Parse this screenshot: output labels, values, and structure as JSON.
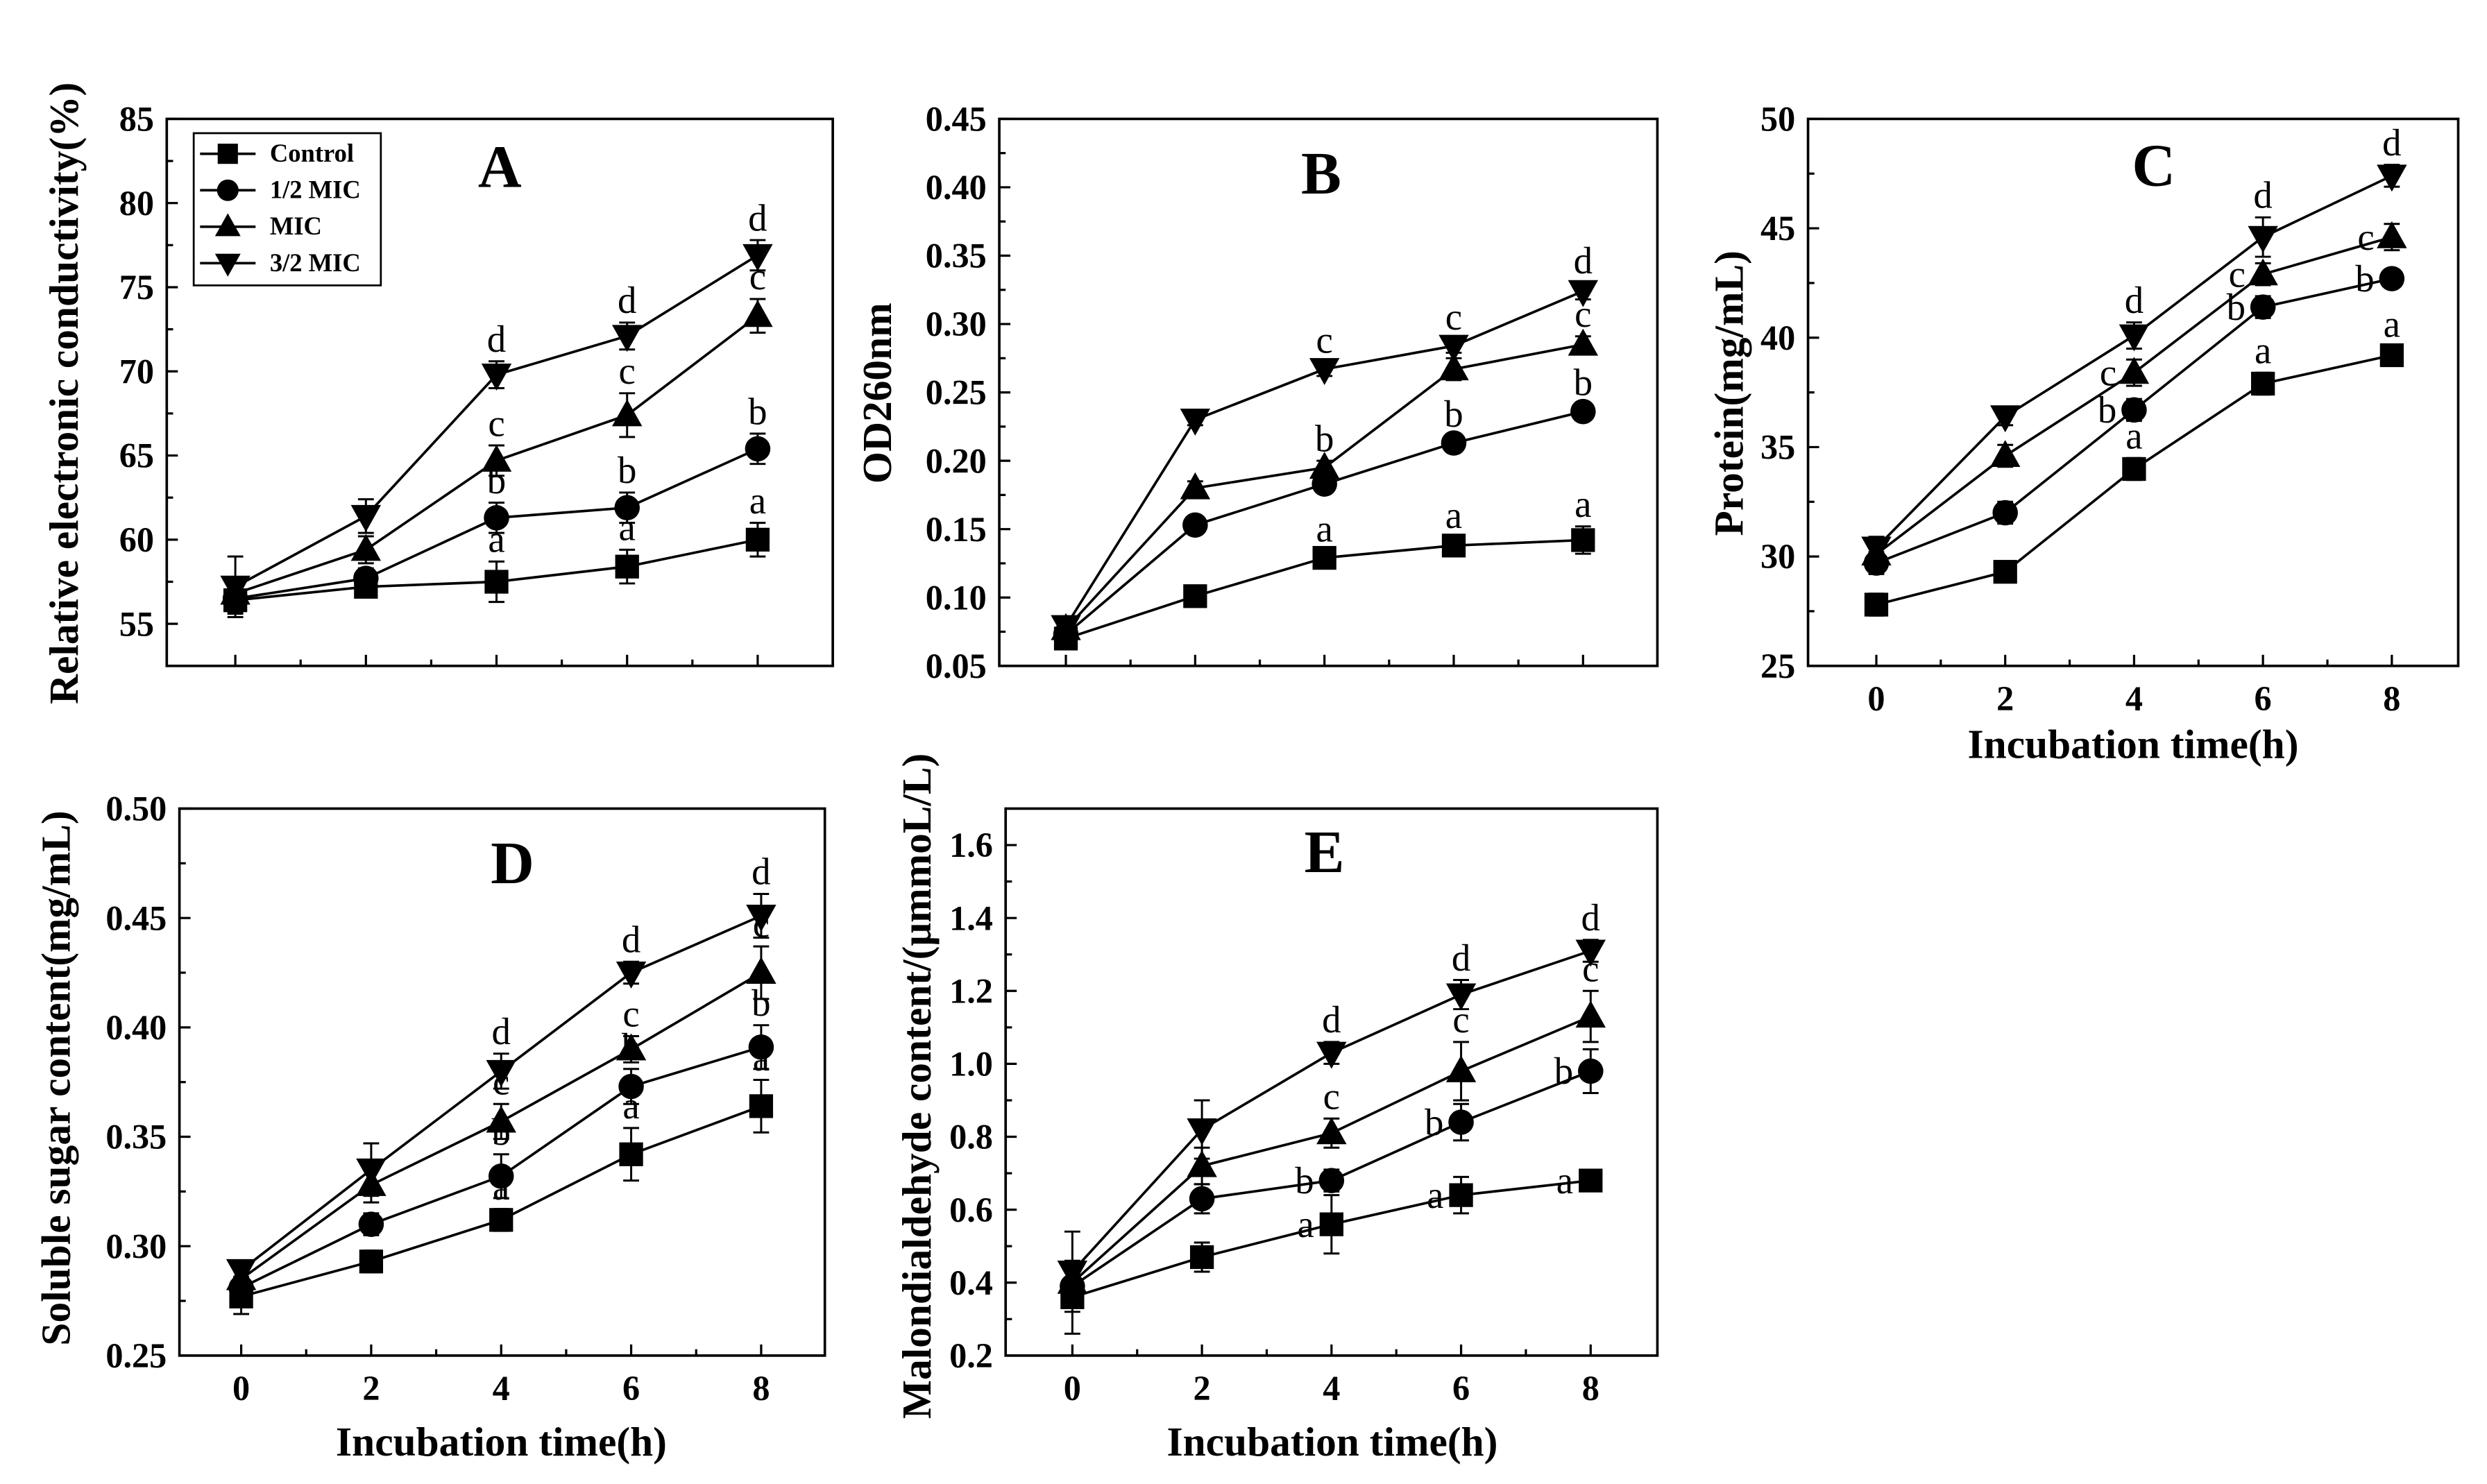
{
  "chart_data": [
    {
      "type": "line",
      "title": "A",
      "xlabel": "",
      "ylabel": "Relative electronic conductivity(%)",
      "x": [
        0,
        2,
        4,
        6,
        8
      ],
      "xlim": [
        -1.05,
        9.15
      ],
      "ylim": [
        52.5,
        85
      ],
      "xticks": [
        0,
        2,
        4,
        6,
        8
      ],
      "xtick_labels": [],
      "yticks": [
        55,
        60,
        65,
        70,
        75,
        80,
        85
      ],
      "ytick_labels": [
        "55",
        "60",
        "65",
        "70",
        "75",
        "80",
        "85"
      ],
      "legend": "top-left",
      "series": [
        {
          "name": "Control",
          "marker": "square",
          "values": [
            56.4,
            57.2,
            57.5,
            58.4,
            60.0
          ],
          "errors": [
            0.8,
            0.5,
            1.2,
            1.0,
            1.0
          ],
          "letters": [
            null,
            null,
            "a",
            "a",
            "a"
          ]
        },
        {
          "name": "1/2 MIC",
          "marker": "circle",
          "values": [
            56.5,
            57.7,
            61.3,
            61.9,
            65.4
          ],
          "errors": [
            0.8,
            0.6,
            0.9,
            0.9,
            0.9
          ],
          "letters": [
            null,
            null,
            "b",
            "b",
            "b"
          ]
        },
        {
          "name": "MIC",
          "marker": "triangle-up",
          "values": [
            56.8,
            59.4,
            64.7,
            67.4,
            73.3
          ],
          "errors": [
            0.6,
            0.8,
            0.9,
            1.3,
            1.0
          ],
          "letters": [
            null,
            null,
            "c",
            "c",
            "c"
          ]
        },
        {
          "name": "3/2 MIC",
          "marker": "triangle-down",
          "values": [
            57.2,
            61.4,
            69.8,
            72.1,
            76.9
          ],
          "errors": [
            1.8,
            1.0,
            0.8,
            0.8,
            0.9
          ],
          "letters": [
            null,
            null,
            "d",
            "d",
            "d"
          ]
        }
      ]
    },
    {
      "type": "line",
      "title": "B",
      "xlabel": "",
      "ylabel": "OD260nm",
      "x": [
        0,
        2,
        4,
        6,
        8
      ],
      "xlim": [
        -1.03,
        9.15
      ],
      "ylim": [
        0.05,
        0.45
      ],
      "xticks": [
        0,
        2,
        4,
        6,
        8
      ],
      "xtick_labels": [],
      "yticks": [
        0.05,
        0.1,
        0.15,
        0.2,
        0.25,
        0.3,
        0.35,
        0.4,
        0.45
      ],
      "ytick_labels": [
        "0.05",
        "0.10",
        "0.15",
        "0.20",
        "0.25",
        "0.30",
        "0.35",
        "0.40",
        "0.45"
      ],
      "series": [
        {
          "name": "Control",
          "marker": "square",
          "values": [
            0.07,
            0.101,
            0.129,
            0.138,
            0.142
          ],
          "errors": [
            0.006,
            0.005,
            0.005,
            0.006,
            0.01
          ],
          "letters": [
            null,
            null,
            "a",
            "a",
            "a"
          ]
        },
        {
          "name": "1/2 MIC",
          "marker": "circle",
          "values": [
            0.073,
            0.153,
            0.183,
            0.213,
            0.236
          ],
          "errors": [
            0.005,
            0.005,
            0.005,
            0.005,
            0.005
          ],
          "letters": [
            null,
            null,
            null,
            "b",
            "b"
          ]
        },
        {
          "name": "MIC",
          "marker": "triangle-up",
          "values": [
            0.077,
            0.18,
            0.195,
            0.267,
            0.285
          ],
          "errors": [
            0.005,
            0.005,
            0.005,
            0.008,
            0.006
          ],
          "letters": [
            null,
            null,
            "b",
            null,
            "c"
          ]
        },
        {
          "name": "3/2 MIC",
          "marker": "triangle-down",
          "values": [
            0.079,
            0.23,
            0.267,
            0.284,
            0.324
          ],
          "errors": [
            0.005,
            0.004,
            0.005,
            0.005,
            0.006
          ],
          "letters": [
            null,
            null,
            "c",
            "c",
            "d"
          ]
        }
      ]
    },
    {
      "type": "line",
      "title": "C",
      "xlabel": "Incubation time(h)",
      "ylabel": "Protein(mg/mL)",
      "x": [
        0,
        2,
        4,
        6,
        8
      ],
      "xlim": [
        -1.06,
        9.03
      ],
      "ylim": [
        25,
        50
      ],
      "xticks": [
        0,
        2,
        4,
        6,
        8
      ],
      "xtick_labels": [
        "0",
        "2",
        "4",
        "6",
        "8"
      ],
      "yticks": [
        25,
        30,
        35,
        40,
        45,
        50
      ],
      "ytick_labels": [
        "25",
        "30",
        "35",
        "40",
        "45",
        "50"
      ],
      "series": [
        {
          "name": "Control",
          "marker": "square",
          "values": [
            27.8,
            29.3,
            34.0,
            37.9,
            39.2
          ],
          "errors": [
            0.5,
            0.4,
            0.5,
            0.5,
            0.4
          ],
          "letters": [
            null,
            null,
            "a",
            "a",
            "a"
          ]
        },
        {
          "name": "1/2 MIC",
          "marker": "circle",
          "values": [
            29.7,
            32.0,
            36.7,
            41.4,
            42.7
          ],
          "errors": [
            0.5,
            0.5,
            0.5,
            0.5,
            0.4
          ],
          "letters": [
            null,
            null,
            "b",
            "b",
            "b"
          ]
        },
        {
          "name": "MIC",
          "marker": "triangle-up",
          "values": [
            30.1,
            34.6,
            38.4,
            42.9,
            44.6
          ],
          "errors": [
            0.5,
            0.5,
            0.6,
            0.5,
            0.6
          ],
          "letters": [
            null,
            null,
            "c",
            "c",
            "c"
          ]
        },
        {
          "name": "3/2 MIC",
          "marker": "triangle-down",
          "values": [
            30.4,
            36.4,
            40.1,
            44.6,
            47.4
          ],
          "errors": [
            0.5,
            0.4,
            0.6,
            0.9,
            0.5
          ],
          "letters": [
            null,
            null,
            "d",
            "d",
            "d"
          ]
        }
      ]
    },
    {
      "type": "line",
      "title": "D",
      "xlabel": "Incubation time(h)",
      "ylabel": "Soluble sugar content(mg/mL)",
      "x": [
        0,
        2,
        4,
        6,
        8
      ],
      "xlim": [
        -0.95,
        8.98
      ],
      "ylim": [
        0.25,
        0.5
      ],
      "xticks": [
        0,
        2,
        4,
        6,
        8
      ],
      "xtick_labels": [
        "0",
        "2",
        "4",
        "6",
        "8"
      ],
      "yticks": [
        0.25,
        0.3,
        0.35,
        0.4,
        0.45,
        0.5
      ],
      "ytick_labels": [
        "0.25",
        "0.30",
        "0.35",
        "0.40",
        "0.45",
        "0.50"
      ],
      "series": [
        {
          "name": "Control",
          "marker": "square",
          "values": [
            0.277,
            0.293,
            0.312,
            0.342,
            0.364
          ],
          "errors": [
            0.008,
            0.005,
            0.005,
            0.012,
            0.012
          ],
          "letters": [
            null,
            null,
            "a",
            "a",
            "a"
          ]
        },
        {
          "name": "1/2 MIC",
          "marker": "circle",
          "values": [
            0.281,
            0.31,
            0.332,
            0.373,
            0.391
          ],
          "errors": [
            0.005,
            0.005,
            0.01,
            0.008,
            0.01
          ],
          "letters": [
            null,
            null,
            "b",
            "b",
            "b"
          ]
        },
        {
          "name": "MIC",
          "marker": "triangle-up",
          "values": [
            0.285,
            0.328,
            0.357,
            0.39,
            0.425
          ],
          "errors": [
            0.005,
            0.008,
            0.008,
            0.006,
            0.012
          ],
          "letters": [
            null,
            null,
            "c",
            "c",
            "c"
          ]
        },
        {
          "name": "3/2 MIC",
          "marker": "triangle-down",
          "values": [
            0.289,
            0.335,
            0.38,
            0.425,
            0.451
          ],
          "errors": [
            0.004,
            0.012,
            0.008,
            0.005,
            0.01
          ],
          "letters": [
            null,
            null,
            "d",
            "d",
            "d"
          ]
        }
      ]
    },
    {
      "type": "line",
      "title": "E",
      "xlabel": "Incubation time(h)",
      "ylabel": "Malondialdehyde content/(μmmoL/L)",
      "x": [
        0,
        2,
        4,
        6,
        8
      ],
      "xlim": [
        -1.03,
        9.03
      ],
      "ylim": [
        0.2,
        1.7
      ],
      "xticks": [
        0,
        2,
        4,
        6,
        8
      ],
      "xtick_labels": [
        "0",
        "2",
        "4",
        "6",
        "8"
      ],
      "yticks": [
        0.2,
        0.4,
        0.6,
        0.8,
        1.0,
        1.2,
        1.4,
        1.6
      ],
      "ytick_labels": [
        "0.2",
        "0.4",
        "0.6",
        "0.8",
        "1.0",
        "1.2",
        "1.4",
        "1.6"
      ],
      "series": [
        {
          "name": "Control",
          "marker": "square",
          "values": [
            0.36,
            0.47,
            0.56,
            0.64,
            0.68
          ],
          "errors": [
            0.1,
            0.04,
            0.08,
            0.05,
            0.02
          ],
          "letters": [
            null,
            null,
            "a",
            "a",
            "a"
          ]
        },
        {
          "name": "1/2 MIC",
          "marker": "circle",
          "values": [
            0.39,
            0.63,
            0.68,
            0.84,
            0.98
          ],
          "errors": [
            0.05,
            0.04,
            0.03,
            0.05,
            0.06
          ],
          "letters": [
            null,
            null,
            "b",
            "b",
            "b"
          ]
        },
        {
          "name": "MIC",
          "marker": "triangle-up",
          "values": [
            0.4,
            0.72,
            0.81,
            0.98,
            1.13
          ],
          "errors": [
            0.05,
            0.05,
            0.04,
            0.08,
            0.07
          ],
          "letters": [
            null,
            null,
            "c",
            "c",
            "c"
          ]
        },
        {
          "name": "3/2 MIC",
          "marker": "triangle-down",
          "values": [
            0.43,
            0.82,
            1.03,
            1.19,
            1.31
          ],
          "errors": [
            0.11,
            0.08,
            0.03,
            0.04,
            0.03
          ],
          "letters": [
            null,
            null,
            "d",
            "d",
            "d"
          ]
        }
      ]
    }
  ]
}
